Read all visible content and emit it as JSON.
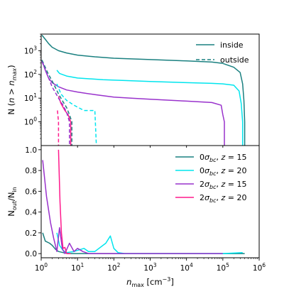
{
  "chart_data": [
    {
      "type": "line",
      "panel": "top",
      "ylabel": "N (n > n_max)",
      "x_scale": "log",
      "y_scale": "log",
      "xlim": [
        1,
        1000000
      ],
      "ylim": [
        0.1,
        5000
      ],
      "y_ticks": [
        {
          "value": 1,
          "label": "10",
          "exp": "0"
        },
        {
          "value": 10,
          "label": "10",
          "exp": "1"
        },
        {
          "value": 100,
          "label": "10",
          "exp": "2"
        },
        {
          "value": 1000,
          "label": "10",
          "exp": "3"
        }
      ],
      "legend": {
        "placement": "top-right",
        "entries": [
          {
            "label": "inside",
            "dash": false,
            "color": "#1a8080"
          },
          {
            "label": "outside",
            "dash": true,
            "color": "#1a8080"
          }
        ]
      },
      "series": [
        {
          "color": "#1a8080",
          "dash": false,
          "points": [
            [
              1.05,
              4500
            ],
            [
              1.3,
              3000
            ],
            [
              1.6,
              2000
            ],
            [
              2,
              1400
            ],
            [
              3,
              1000
            ],
            [
              5,
              800
            ],
            [
              10,
              650
            ],
            [
              30,
              550
            ],
            [
              100,
              480
            ],
            [
              1000,
              420
            ],
            [
              10000,
              370
            ],
            [
              50000,
              330
            ],
            [
              100000,
              290
            ],
            [
              200000,
              200
            ],
            [
              300000,
              120
            ],
            [
              350000,
              40
            ],
            [
              380000,
              8
            ],
            [
              400000,
              1
            ],
            [
              400000,
              0.1
            ]
          ]
        },
        {
          "color": "#00e5ee",
          "dash": false,
          "points": [
            [
              2.7,
              150
            ],
            [
              3.2,
              110
            ],
            [
              5,
              85
            ],
            [
              10,
              70
            ],
            [
              50,
              60
            ],
            [
              200,
              55
            ],
            [
              1000,
              50
            ],
            [
              10000,
              45
            ],
            [
              50000,
              42
            ],
            [
              100000,
              40
            ],
            [
              200000,
              35
            ],
            [
              280000,
              20
            ],
            [
              320000,
              6
            ],
            [
              350000,
              1
            ],
            [
              350000,
              0.1
            ]
          ]
        },
        {
          "color": "#9932cc",
          "dash": false,
          "points": [
            [
              1.05,
              400
            ],
            [
              1.3,
              150
            ],
            [
              1.6,
              70
            ],
            [
              2,
              45
            ],
            [
              3,
              30
            ],
            [
              5,
              22
            ],
            [
              10,
              18
            ],
            [
              30,
              14
            ],
            [
              100,
              11
            ],
            [
              300,
              10
            ],
            [
              1000,
              9
            ],
            [
              10000,
              7.5
            ],
            [
              50000,
              6.5
            ],
            [
              90000,
              5
            ],
            [
              100000,
              2
            ],
            [
              110000,
              1
            ],
            [
              110000,
              0.1
            ]
          ]
        },
        {
          "color": "#ff1a8c",
          "dash": false,
          "points": [
            [
              3.0,
              12
            ],
            [
              3.5,
              6
            ],
            [
              4.5,
              3
            ],
            [
              5.5,
              2
            ],
            [
              6.5,
              1
            ],
            [
              6.5,
              0.1
            ]
          ]
        },
        {
          "color": "#1a8080",
          "dash": true,
          "points": [
            [
              1.05,
              400
            ],
            [
              1.5,
              120
            ],
            [
              2.2,
              40
            ],
            [
              3,
              15
            ],
            [
              4,
              7
            ],
            [
              5,
              4
            ],
            [
              6,
              2
            ],
            [
              7,
              1
            ],
            [
              7,
              0.1
            ]
          ]
        },
        {
          "color": "#00e5ee",
          "dash": true,
          "points": [
            [
              2.7,
              40
            ],
            [
              3.5,
              15
            ],
            [
              5,
              8
            ],
            [
              8,
              5
            ],
            [
              15,
              3
            ],
            [
              30,
              3
            ],
            [
              33,
              0.1
            ]
          ]
        },
        {
          "color": "#9932cc",
          "dash": true,
          "points": [
            [
              1.05,
              350
            ],
            [
              1.5,
              90
            ],
            [
              2,
              30
            ],
            [
              3,
              10
            ],
            [
              4,
              5
            ],
            [
              5,
              2.5
            ],
            [
              6,
              1
            ],
            [
              6,
              0.1
            ]
          ]
        },
        {
          "color": "#ff1a8c",
          "dash": true,
          "points": [
            [
              2.8,
              3
            ],
            [
              3,
              1
            ],
            [
              3,
              0.1
            ]
          ]
        }
      ]
    },
    {
      "type": "line",
      "panel": "bottom",
      "xlabel": "n_max [cm^-3]",
      "ylabel": "N_out/N_in",
      "x_scale": "log",
      "xlim": [
        1,
        1000000
      ],
      "ylim": [
        -0.04,
        1.04
      ],
      "x_ticks": [
        {
          "value": 1,
          "label": "10",
          "exp": "0"
        },
        {
          "value": 10,
          "label": "10",
          "exp": "1"
        },
        {
          "value": 100,
          "label": "10",
          "exp": "2"
        },
        {
          "value": 1000,
          "label": "10",
          "exp": "3"
        },
        {
          "value": 10000,
          "label": "10",
          "exp": "4"
        },
        {
          "value": 100000,
          "label": "10",
          "exp": "5"
        },
        {
          "value": 1000000,
          "label": "10",
          "exp": "6"
        }
      ],
      "y_ticks": [
        {
          "value": 0.0,
          "label": "0.0"
        },
        {
          "value": 0.2,
          "label": "0.2"
        },
        {
          "value": 0.4,
          "label": "0.4"
        },
        {
          "value": 0.6,
          "label": "0.6"
        },
        {
          "value": 0.8,
          "label": "0.8"
        },
        {
          "value": 1.0,
          "label": "1.0"
        }
      ],
      "legend": {
        "placement": "top-right",
        "entries": [
          {
            "label": "0σ_bc, z = 15",
            "color": "#1a8080"
          },
          {
            "label": "0σ_bc, z = 20",
            "color": "#00e5ee"
          },
          {
            "label": "2σ_bc, z = 15",
            "color": "#9932cc"
          },
          {
            "label": "2σ_bc, z = 20",
            "color": "#ff1a8c"
          }
        ]
      },
      "series": [
        {
          "name": "0σ_bc, z = 15",
          "color": "#1a8080",
          "points": [
            [
              1.1,
              0.2
            ],
            [
              1.3,
              0.12
            ],
            [
              1.7,
              0.1
            ],
            [
              2,
              0.08
            ],
            [
              2.5,
              0.04
            ],
            [
              3,
              0.02
            ],
            [
              4,
              0.01
            ],
            [
              6,
              0.0
            ],
            [
              10,
              0.0
            ],
            [
              100000,
              0.0
            ],
            [
              400000,
              0.0
            ]
          ]
        },
        {
          "name": "0σ_bc, z = 20",
          "color": "#00e5ee",
          "points": [
            [
              2.7,
              0.2
            ],
            [
              3.2,
              0.08
            ],
            [
              4,
              0.03
            ],
            [
              5,
              0.01
            ],
            [
              8,
              0.02
            ],
            [
              15,
              0.05
            ],
            [
              20,
              0.02
            ],
            [
              30,
              0.02
            ],
            [
              60,
              0.1
            ],
            [
              80,
              0.17
            ],
            [
              100,
              0.05
            ],
            [
              130,
              0.01
            ],
            [
              200,
              0.0
            ],
            [
              100000,
              0.0
            ],
            [
              350000,
              0.01
            ]
          ]
        },
        {
          "name": "2σ_bc, z = 15",
          "color": "#9932cc",
          "points": [
            [
              1.1,
              0.9
            ],
            [
              1.4,
              0.55
            ],
            [
              1.8,
              0.3
            ],
            [
              2.2,
              0.15
            ],
            [
              2.7,
              0.02
            ],
            [
              3.2,
              0.25
            ],
            [
              3.8,
              0.05
            ],
            [
              4.5,
              0.0
            ],
            [
              6,
              0.1
            ],
            [
              8,
              0.02
            ],
            [
              10,
              0.05
            ],
            [
              14,
              0.02
            ],
            [
              20,
              0.0
            ],
            [
              100000,
              0.0
            ]
          ]
        },
        {
          "name": "2σ_bc, z = 20",
          "color": "#ff1a8c",
          "points": [
            [
              3,
              1.0
            ],
            [
              3.3,
              0.5
            ],
            [
              3.6,
              0.2
            ],
            [
              4,
              0.05
            ],
            [
              4.5,
              0.06
            ],
            [
              5,
              0.0
            ],
            [
              6,
              0.0
            ],
            [
              6.5,
              0.0
            ]
          ]
        }
      ]
    }
  ]
}
